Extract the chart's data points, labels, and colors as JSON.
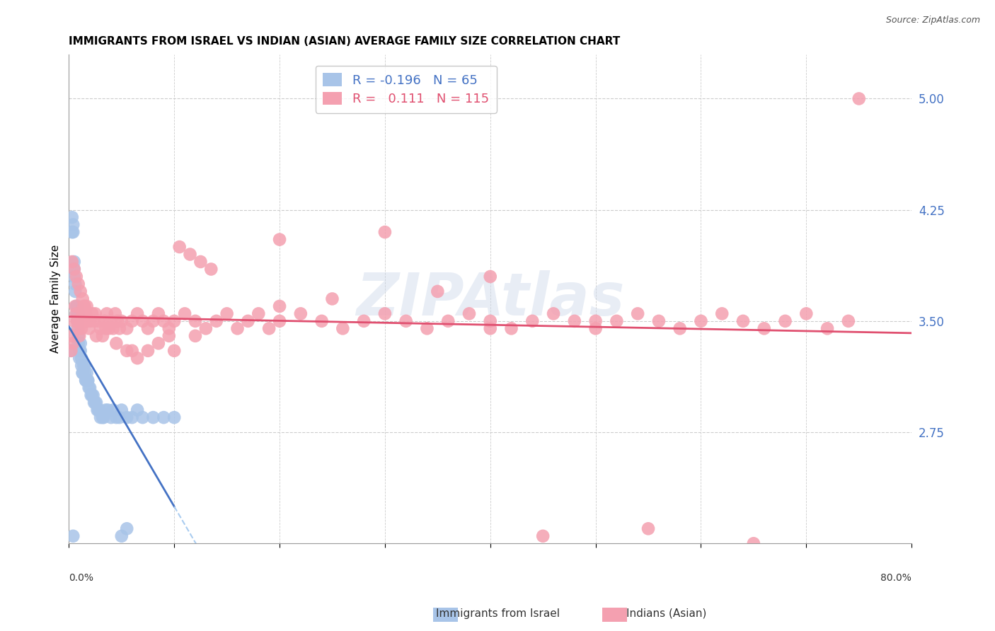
{
  "title": "IMMIGRANTS FROM ISRAEL VS INDIAN (ASIAN) AVERAGE FAMILY SIZE CORRELATION CHART",
  "source": "Source: ZipAtlas.com",
  "ylabel": "Average Family Size",
  "xlim": [
    0.0,
    0.8
  ],
  "ylim": [
    2.0,
    5.3
  ],
  "yticks": [
    2.75,
    3.5,
    4.25,
    5.0
  ],
  "xticks": [
    0.0,
    0.1,
    0.2,
    0.3,
    0.4,
    0.5,
    0.6,
    0.7,
    0.8
  ],
  "watermark": "ZIPAtlas",
  "legend": {
    "series1_label": "Immigrants from Israel",
    "series1_R": "-0.196",
    "series1_N": "65",
    "series2_label": "Indians (Asian)",
    "series2_R": "0.111",
    "series2_N": "115"
  },
  "series1_color": "#a8c4e8",
  "series2_color": "#f4a0b0",
  "trendline1_color": "#4472c4",
  "trendline2_color": "#e05070",
  "trendline1_dashed_color": "#aaccf0",
  "background_color": "#ffffff",
  "grid_color": "#cccccc",
  "yaxis_label_color": "#4472c4",
  "israel_x": [
    0.002,
    0.003,
    0.003,
    0.004,
    0.004,
    0.005,
    0.005,
    0.005,
    0.006,
    0.006,
    0.007,
    0.007,
    0.008,
    0.008,
    0.009,
    0.009,
    0.01,
    0.01,
    0.011,
    0.011,
    0.012,
    0.012,
    0.013,
    0.013,
    0.014,
    0.015,
    0.015,
    0.016,
    0.016,
    0.017,
    0.018,
    0.018,
    0.019,
    0.02,
    0.021,
    0.022,
    0.023,
    0.024,
    0.025,
    0.026,
    0.027,
    0.028,
    0.029,
    0.03,
    0.032,
    0.033,
    0.035,
    0.037,
    0.04,
    0.042,
    0.045,
    0.048,
    0.05,
    0.055,
    0.06,
    0.065,
    0.07,
    0.08,
    0.09,
    0.1,
    0.004,
    0.05,
    0.055,
    0.009,
    0.008
  ],
  "israel_y": [
    3.3,
    4.1,
    4.2,
    4.15,
    4.1,
    3.9,
    3.85,
    3.8,
    3.75,
    3.7,
    3.6,
    3.55,
    3.5,
    3.45,
    3.4,
    3.35,
    3.3,
    3.25,
    3.35,
    3.3,
    3.25,
    3.2,
    3.15,
    3.15,
    3.2,
    3.2,
    3.15,
    3.1,
    3.1,
    3.15,
    3.1,
    3.1,
    3.05,
    3.05,
    3.0,
    3.0,
    3.0,
    2.95,
    2.95,
    2.95,
    2.9,
    2.9,
    2.9,
    2.85,
    2.85,
    2.85,
    2.9,
    2.9,
    2.85,
    2.9,
    2.85,
    2.85,
    2.9,
    2.85,
    2.85,
    2.9,
    2.85,
    2.85,
    2.85,
    2.85,
    2.05,
    2.05,
    2.1,
    3.55,
    3.6
  ],
  "indian_x": [
    0.002,
    0.003,
    0.004,
    0.005,
    0.006,
    0.007,
    0.008,
    0.009,
    0.01,
    0.011,
    0.012,
    0.013,
    0.014,
    0.015,
    0.016,
    0.017,
    0.018,
    0.019,
    0.02,
    0.022,
    0.024,
    0.026,
    0.028,
    0.03,
    0.032,
    0.034,
    0.036,
    0.038,
    0.04,
    0.042,
    0.044,
    0.046,
    0.048,
    0.05,
    0.055,
    0.06,
    0.065,
    0.07,
    0.075,
    0.08,
    0.085,
    0.09,
    0.095,
    0.1,
    0.11,
    0.12,
    0.13,
    0.14,
    0.15,
    0.16,
    0.17,
    0.18,
    0.19,
    0.2,
    0.22,
    0.24,
    0.26,
    0.28,
    0.3,
    0.32,
    0.34,
    0.36,
    0.38,
    0.4,
    0.42,
    0.44,
    0.46,
    0.48,
    0.5,
    0.52,
    0.54,
    0.56,
    0.58,
    0.6,
    0.62,
    0.64,
    0.66,
    0.68,
    0.7,
    0.72,
    0.74,
    0.003,
    0.005,
    0.007,
    0.009,
    0.011,
    0.013,
    0.015,
    0.025,
    0.035,
    0.045,
    0.055,
    0.065,
    0.075,
    0.085,
    0.095,
    0.105,
    0.115,
    0.125,
    0.135,
    0.2,
    0.25,
    0.35,
    0.45,
    0.55,
    0.65,
    0.2,
    0.3,
    0.4,
    0.5,
    0.1,
    0.12,
    0.06,
    0.75,
    0.4
  ],
  "indian_y": [
    3.3,
    3.4,
    3.35,
    3.5,
    3.6,
    3.55,
    3.5,
    3.45,
    3.4,
    3.5,
    3.45,
    3.55,
    3.6,
    3.5,
    3.55,
    3.6,
    3.5,
    3.45,
    3.5,
    3.55,
    3.5,
    3.4,
    3.5,
    3.45,
    3.4,
    3.5,
    3.55,
    3.45,
    3.5,
    3.45,
    3.55,
    3.5,
    3.45,
    3.5,
    3.45,
    3.5,
    3.55,
    3.5,
    3.45,
    3.5,
    3.55,
    3.5,
    3.45,
    3.5,
    3.55,
    3.5,
    3.45,
    3.5,
    3.55,
    3.45,
    3.5,
    3.55,
    3.45,
    3.5,
    3.55,
    3.5,
    3.45,
    3.5,
    3.55,
    3.5,
    3.45,
    3.5,
    3.55,
    3.5,
    3.45,
    3.5,
    3.55,
    3.5,
    3.45,
    3.5,
    3.55,
    3.5,
    3.45,
    3.5,
    3.55,
    3.5,
    3.45,
    3.5,
    3.55,
    3.45,
    3.5,
    3.9,
    3.85,
    3.8,
    3.75,
    3.7,
    3.65,
    3.6,
    3.55,
    3.45,
    3.35,
    3.3,
    3.25,
    3.3,
    3.35,
    3.4,
    4.0,
    3.95,
    3.9,
    3.85,
    3.6,
    3.65,
    3.7,
    2.05,
    2.1,
    2.0,
    4.05,
    4.1,
    3.8,
    3.5,
    3.3,
    3.4,
    3.3,
    5.0,
    3.45
  ]
}
